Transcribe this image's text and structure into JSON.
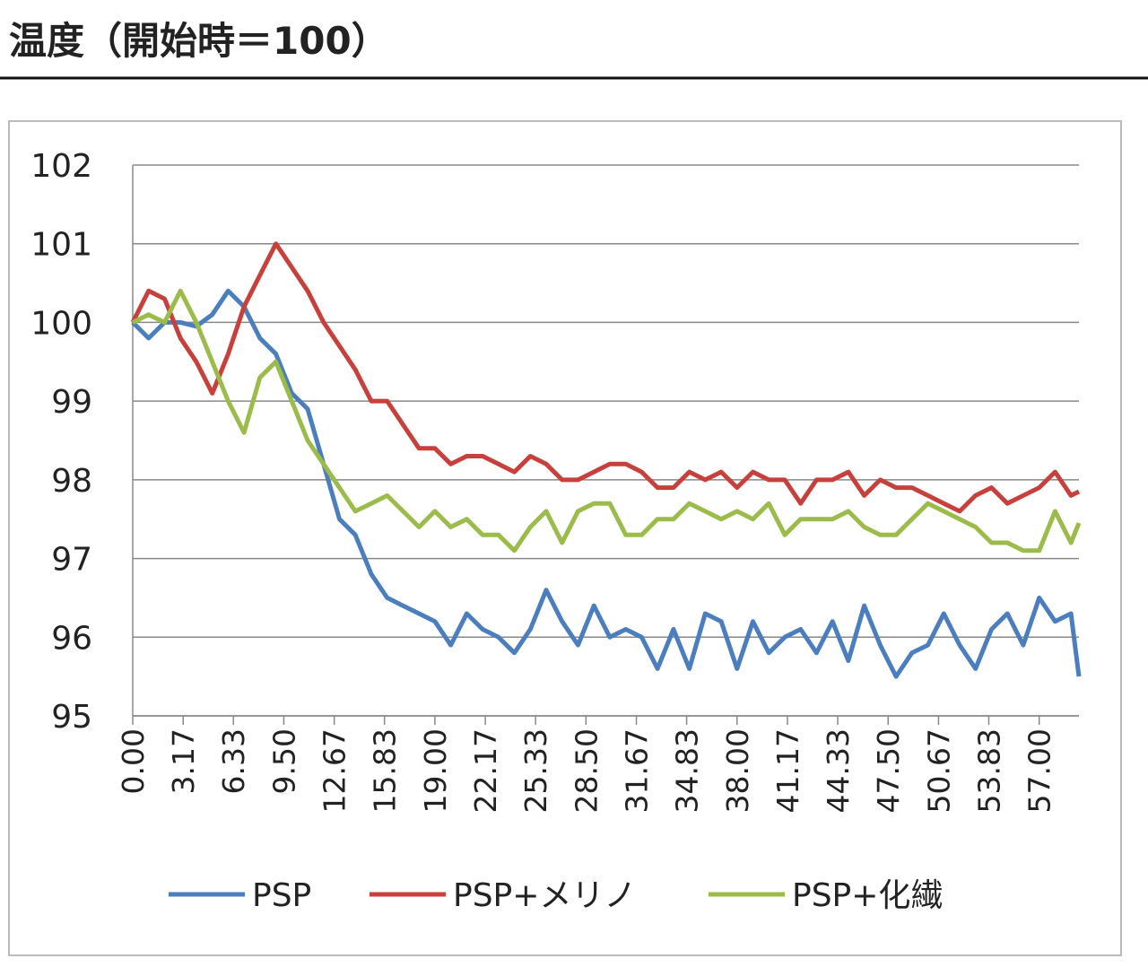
{
  "chart_data": {
    "type": "line",
    "title": "温度（開始時＝100）",
    "x": [
      0,
      1,
      2,
      3,
      4,
      5,
      6,
      7,
      8,
      9,
      10,
      11,
      12,
      13,
      14,
      15,
      16,
      17,
      18,
      19,
      20,
      21,
      22,
      23,
      24,
      25,
      26,
      27,
      28,
      29,
      30,
      31,
      32,
      33,
      34,
      35,
      36,
      37,
      38,
      39,
      40,
      41,
      42,
      43,
      44,
      45,
      46,
      47,
      48,
      49,
      50,
      51,
      52,
      53,
      54,
      55,
      56,
      57,
      58,
      59,
      59.5
    ],
    "series": [
      {
        "name": "PSP",
        "color": "#4a7ebf",
        "values": [
          100,
          99.8,
          100,
          100,
          99.95,
          100.1,
          100.4,
          100.2,
          99.8,
          99.6,
          99.1,
          98.9,
          98.2,
          97.5,
          97.3,
          96.8,
          96.5,
          96.4,
          96.3,
          96.2,
          95.9,
          96.3,
          96.1,
          96,
          95.8,
          96.1,
          96.6,
          96.2,
          95.9,
          96.4,
          96,
          96.1,
          96,
          95.6,
          96.1,
          95.6,
          96.3,
          96.2,
          95.6,
          96.2,
          95.8,
          96,
          96.1,
          95.8,
          96.2,
          95.7,
          96.4,
          95.9,
          95.5,
          95.8,
          95.9,
          96.3,
          95.9,
          95.6,
          96.1,
          96.3,
          95.9,
          96.5,
          96.2,
          96.3,
          95.5
        ]
      },
      {
        "name": "PSP+メリノ",
        "color": "#c8403c",
        "values": [
          100,
          100.4,
          100.3,
          99.8,
          99.5,
          99.1,
          99.6,
          100.2,
          100.6,
          101,
          100.7,
          100.4,
          100,
          99.7,
          99.4,
          99,
          99,
          98.7,
          98.4,
          98.4,
          98.2,
          98.3,
          98.3,
          98.2,
          98.1,
          98.3,
          98.2,
          98,
          98,
          98.1,
          98.2,
          98.2,
          98.1,
          97.9,
          97.9,
          98.1,
          98,
          98.1,
          97.9,
          98.1,
          98,
          98,
          97.7,
          98,
          98,
          98.1,
          97.8,
          98,
          97.9,
          97.9,
          97.8,
          97.7,
          97.6,
          97.8,
          97.9,
          97.7,
          97.8,
          97.9,
          98.1,
          97.8,
          97.85
        ]
      },
      {
        "name": "PSP+化繊",
        "color": "#9bbb4a",
        "values": [
          100,
          100.1,
          100,
          100.4,
          100,
          99.5,
          99,
          98.6,
          99.3,
          99.5,
          99,
          98.5,
          98.2,
          97.9,
          97.6,
          97.7,
          97.8,
          97.6,
          97.4,
          97.6,
          97.4,
          97.5,
          97.3,
          97.3,
          97.1,
          97.4,
          97.6,
          97.2,
          97.6,
          97.7,
          97.7,
          97.3,
          97.3,
          97.5,
          97.5,
          97.7,
          97.6,
          97.5,
          97.6,
          97.5,
          97.7,
          97.3,
          97.5,
          97.5,
          97.5,
          97.6,
          97.4,
          97.3,
          97.3,
          97.5,
          97.7,
          97.6,
          97.5,
          97.4,
          97.2,
          97.2,
          97.1,
          97.1,
          97.6,
          97.2,
          97.45
        ]
      }
    ],
    "xlim": [
      0,
      59.5
    ],
    "xticks": [
      {
        "value": 0,
        "label": "0.00"
      },
      3.17,
      6.33,
      {
        "value": 9.5,
        "label": "9.50"
      },
      12.67,
      15.83,
      {
        "value": 19,
        "label": "19.00"
      },
      22.17,
      25.33,
      {
        "value": 28.5,
        "label": "28.50"
      },
      31.67,
      34.83,
      {
        "value": 38,
        "label": "38.00"
      },
      41.17,
      44.33,
      {
        "value": 47.5,
        "label": "47.50"
      },
      50.67,
      53.83,
      {
        "value": 57,
        "label": "57.00"
      }
    ],
    "ylim": [
      95,
      102
    ],
    "yticks": [
      95,
      96,
      97,
      98,
      99,
      100,
      101,
      102
    ],
    "grid": true
  }
}
